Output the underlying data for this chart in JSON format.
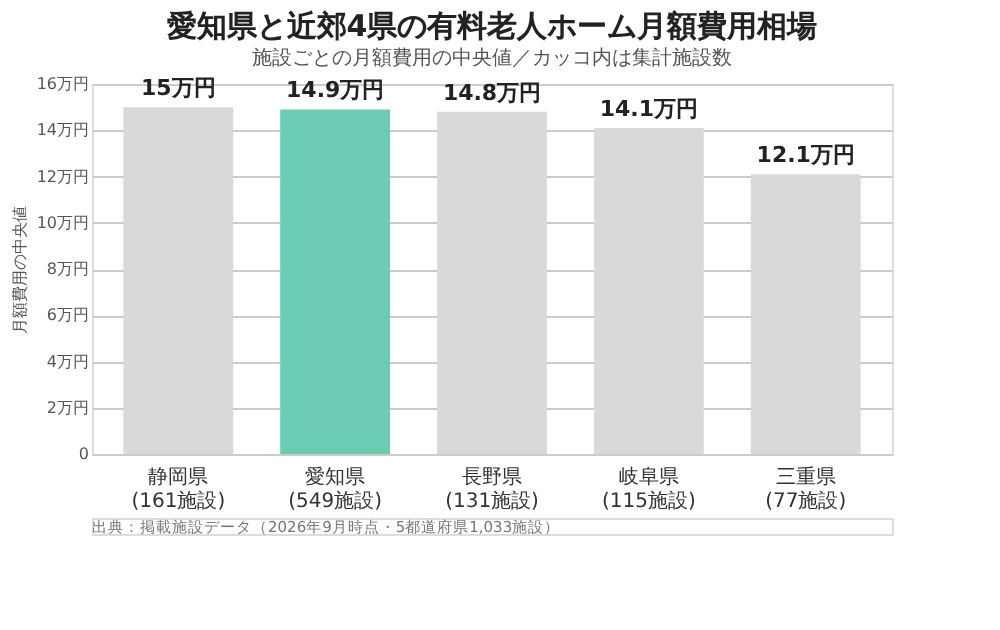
{
  "chart_data": {
    "type": "bar",
    "title": "愛知県と近郊4県の有料老人ホーム月額費用相場",
    "subtitle": "施設ごとの月額費用の中央値／カッコ内は集計施設数",
    "ylabel": "月額費用の中央値",
    "categories": [
      "静岡県\n(161施設)",
      "愛知県\n(549施設)",
      "長野県\n(131施設)",
      "岐阜県\n(115施設)",
      "三重県\n(77施設)"
    ],
    "values": [
      15,
      14.9,
      14.8,
      14.1,
      12.1
    ],
    "colors": [
      "#d9d9d9",
      "#6ccbb3",
      "#d9d9d9",
      "#d9d9d9",
      "#d9d9d9"
    ],
    "value_labels": [
      "15万円",
      "14.9万円",
      "14.8万円",
      "14.1万円",
      "12.1万円"
    ],
    "ylim": [
      0,
      16
    ],
    "yticks": [
      0,
      {
        "value": 2,
        "label": "2万円"
      },
      {
        "value": 4,
        "label": "4万円"
      },
      {
        "value": 6,
        "label": "6万円"
      },
      {
        "value": 8,
        "label": "8万円"
      },
      {
        "value": 10,
        "label": "10万円"
      },
      {
        "value": 12,
        "label": "12万円"
      },
      {
        "value": 14,
        "label": "14万円"
      },
      {
        "value": 16,
        "label": "16万円"
      }
    ],
    "grid": "y",
    "annotations": [
      "出典：掲載施設データ（2026年9月時点・5都道府県1,033施設）"
    ]
  }
}
